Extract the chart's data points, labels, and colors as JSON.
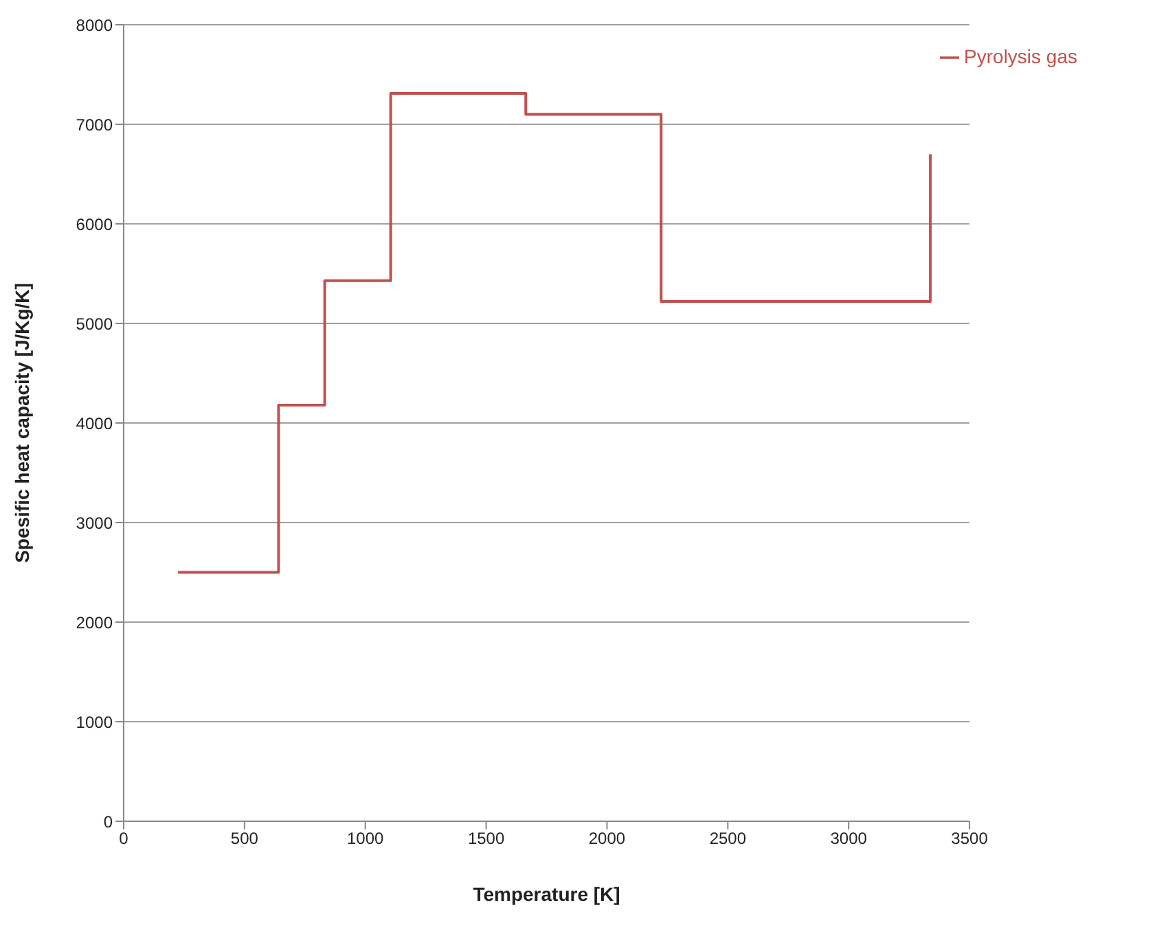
{
  "chart_data": {
    "type": "step",
    "xlabel": "Temperature [K]",
    "ylabel": "Spesific heat capacity [J/Kg/K]",
    "x": [
      225,
      641,
      832,
      1105,
      1664,
      2224,
      3338
    ],
    "series": [
      {
        "name": "Pyrolysis gas",
        "color": "#c0504d",
        "values": [
          2500,
          4180,
          5430,
          7310,
          7100,
          5220,
          6700
        ]
      }
    ],
    "xlim": [
      0,
      3500
    ],
    "xticks": [
      0,
      500,
      1000,
      1500,
      2000,
      2500,
      3000,
      3500
    ],
    "ylim": [
      0,
      8000
    ],
    "yticks": [
      0,
      1000,
      2000,
      3000,
      4000,
      5000,
      6000,
      7000,
      8000
    ],
    "grid": "y",
    "legend": "top right",
    "marker": "none",
    "line_style": "solid"
  }
}
